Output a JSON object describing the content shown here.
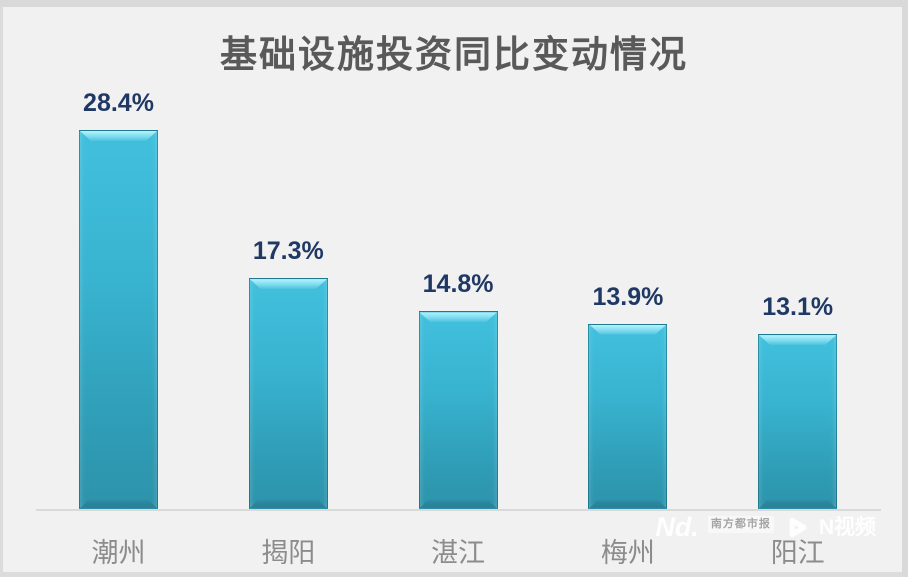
{
  "chart_data": {
    "type": "bar",
    "title": "基础设施投资同比变动情况",
    "categories": [
      "潮州",
      "揭阳",
      "湛江",
      "梅州",
      "阳江"
    ],
    "values": [
      28.4,
      17.3,
      14.8,
      13.9,
      13.1
    ],
    "value_labels": [
      "28.4%",
      "17.3%",
      "14.8%",
      "13.9%",
      "13.1%"
    ],
    "unit": "%",
    "ylim": [
      0,
      30
    ],
    "grid": false,
    "legend": "none",
    "colors": {
      "background": "#f1f1f1",
      "frame_border": "#d9d9d9",
      "bar_fill": "#38b3d0",
      "bar_bevel_highlight": "#b5f3fd",
      "bar_bottom_shade": "#2d93ab",
      "title_text": "#595959",
      "value_label_text": "#1f3864",
      "category_label_text": "#8c8c8c",
      "axis_line": "#d9d9d9"
    }
  },
  "watermark": {
    "logo_text": "Nd.",
    "badge_text": "南方都市报",
    "channel_text": "N视频",
    "color": "#ffffff"
  }
}
